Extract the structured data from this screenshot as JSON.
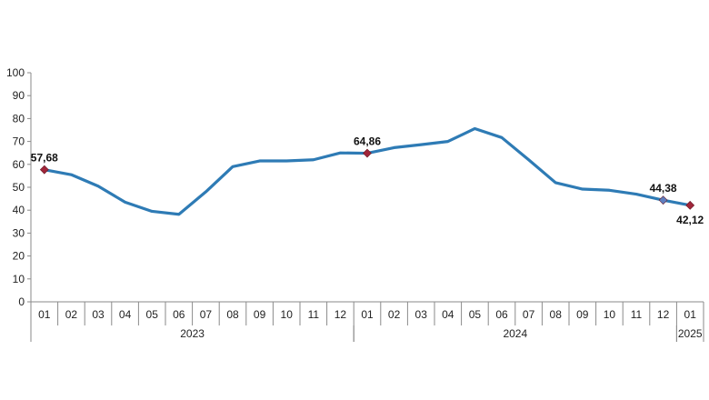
{
  "chart_data": {
    "type": "line",
    "title": "",
    "xlabel": "",
    "ylabel": "",
    "ylim": [
      0,
      100
    ],
    "yticks": [
      0,
      10,
      20,
      30,
      40,
      50,
      60,
      70,
      80,
      90,
      100
    ],
    "grid": false,
    "legend": "none",
    "categories": [
      "01",
      "02",
      "03",
      "04",
      "05",
      "06",
      "07",
      "08",
      "09",
      "10",
      "11",
      "12",
      "01",
      "02",
      "03",
      "04",
      "05",
      "06",
      "07",
      "08",
      "09",
      "10",
      "11",
      "12",
      "01"
    ],
    "year_groups": [
      {
        "label": "2023",
        "start": 0,
        "end": 11
      },
      {
        "label": "2024",
        "start": 12,
        "end": 23
      },
      {
        "label": "2025",
        "start": 24,
        "end": 24
      }
    ],
    "series": [
      {
        "values": [
          57.68,
          55.5,
          50.5,
          43.5,
          39.5,
          38.2,
          48.0,
          59.0,
          61.5,
          61.5,
          62.0,
          65.0,
          64.86,
          67.3,
          68.6,
          70.0,
          75.6,
          71.7,
          62.0,
          52.0,
          49.2,
          48.7,
          47.0,
          44.38,
          42.12
        ],
        "color": "#2e7bb5"
      }
    ],
    "annotations": [
      {
        "index": 0,
        "label": "57,68",
        "marker_color": "#a0263a",
        "position": "above"
      },
      {
        "index": 12,
        "label": "64,86",
        "marker_color": "#a0263a",
        "position": "above"
      },
      {
        "index": 23,
        "label": "44,38",
        "marker_color": "#5f7fc0",
        "position": "above"
      },
      {
        "index": 24,
        "label": "42,12",
        "marker_color": "#a0263a",
        "position": "below"
      }
    ]
  }
}
